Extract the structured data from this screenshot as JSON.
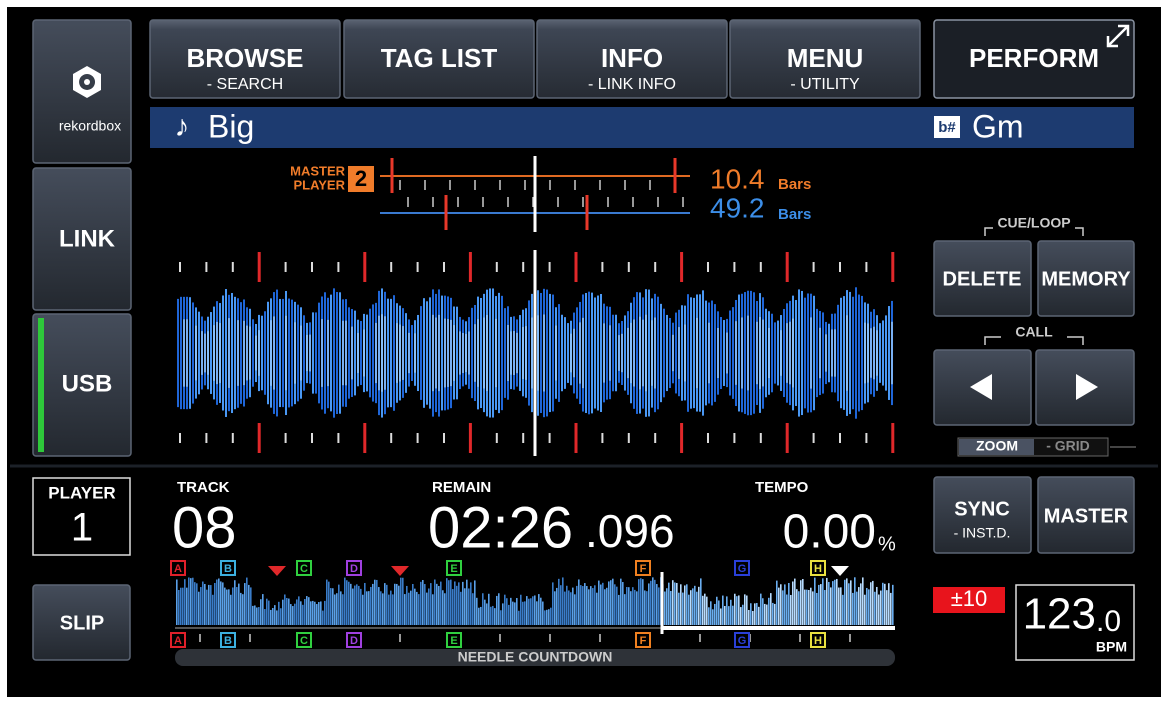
{
  "sidebar": {
    "logo": "rekordbox",
    "link": "LINK",
    "usb": "USB"
  },
  "tabs": [
    {
      "title": "BROWSE",
      "sub": "- SEARCH"
    },
    {
      "title": "TAG LIST"
    },
    {
      "title": "INFO",
      "sub": "- LINK INFO"
    },
    {
      "title": "MENU",
      "sub": "- UTILITY"
    }
  ],
  "perform": "PERFORM",
  "track": {
    "icon": "♪",
    "title": "Big",
    "key_icon": "b#",
    "key": "Gm"
  },
  "master": {
    "label_1": "MASTER",
    "label_2": "PLAYER",
    "player": "2",
    "master_bars": "10.4",
    "master_unit": "Bars",
    "own_bars": "49.2",
    "own_unit": "Bars"
  },
  "cue_loop": {
    "label": "CUE/LOOP",
    "delete": "DELETE",
    "memory": "MEMORY",
    "call": "CALL"
  },
  "zoom": "ZOOM",
  "grid": "- GRID",
  "player": {
    "label": "PLAYER",
    "number": "1"
  },
  "slip": "SLIP",
  "readout": {
    "track_label": "TRACK",
    "track": "08",
    "remain_label": "REMAIN",
    "remain": "02:26",
    "remain_ms": ".096",
    "tempo_label": "TEMPO",
    "tempo": "0.00",
    "tempo_unit": "%"
  },
  "sync": {
    "title": "SYNC",
    "sub": "- INST.D."
  },
  "master_button": "MASTER",
  "tempo_range": "±10",
  "bpm": {
    "value": "123",
    "decimal": ".0",
    "unit": "BPM"
  },
  "hot_cues": [
    {
      "label": "A",
      "color": "#e0202a"
    },
    {
      "label": "B",
      "color": "#3cb0e0"
    },
    {
      "label": "C",
      "color": "#30d040"
    },
    {
      "label": "D",
      "color": "#a040e0"
    },
    {
      "label": "E",
      "color": "#30d040"
    },
    {
      "label": "F",
      "color": "#f08020"
    },
    {
      "label": "G",
      "color": "#2a40d8"
    },
    {
      "label": "H",
      "color": "#e8e040"
    }
  ],
  "needle": "NEEDLE COUNTDOWN"
}
